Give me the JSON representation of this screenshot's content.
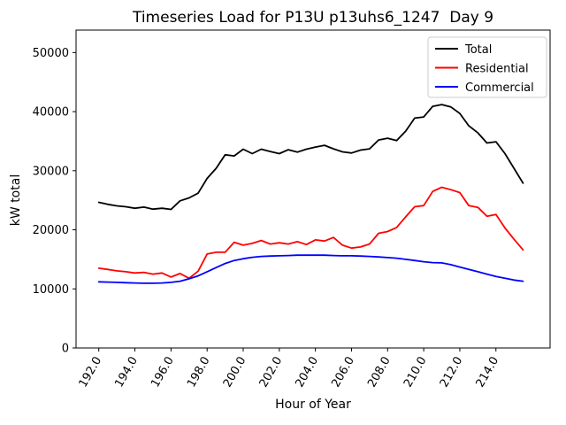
{
  "chart_data": {
    "type": "line",
    "title": "Timeseries Load for P13U p13uhs6_1247  Day 9",
    "xlabel": "Hour of Year",
    "ylabel": "kW total",
    "grid": false,
    "legend_position": "upper right",
    "xlim": [
      190.74,
      217.0
    ],
    "ylim": [
      0,
      53800
    ],
    "xticks": [
      192,
      194,
      196,
      198,
      200,
      202,
      204,
      206,
      208,
      210,
      212,
      214
    ],
    "xtick_labels": [
      "192.0",
      "194.0",
      "196.0",
      "198.0",
      "200.0",
      "202.0",
      "204.0",
      "206.0",
      "208.0",
      "210.0",
      "212.0",
      "214.0"
    ],
    "xtick_rotation": 60,
    "yticks": [
      0,
      10000,
      20000,
      30000,
      40000,
      50000
    ],
    "ytick_labels": [
      "0",
      "10000",
      "20000",
      "30000",
      "40000",
      "50000"
    ],
    "x": [
      192,
      192.5,
      193,
      193.5,
      194,
      194.5,
      195,
      195.5,
      196,
      196.5,
      197,
      197.5,
      198,
      198.5,
      199,
      199.5,
      200,
      200.5,
      201,
      201.5,
      202,
      202.5,
      203,
      203.5,
      204,
      204.5,
      205,
      205.5,
      206,
      206.5,
      207,
      207.5,
      208,
      208.5,
      209,
      209.5,
      210,
      210.5,
      211,
      211.5,
      212,
      212.5,
      213,
      213.5,
      214,
      214.5,
      215,
      215.5
    ],
    "series": [
      {
        "name": "Total",
        "color": "#000000",
        "values": [
          24650,
          24300,
          24050,
          23900,
          23650,
          23850,
          23500,
          23650,
          23450,
          24900,
          25400,
          26200,
          28700,
          30400,
          32700,
          32500,
          33650,
          32900,
          33650,
          33250,
          32900,
          33550,
          33150,
          33650,
          34000,
          34300,
          33700,
          33200,
          33000,
          33500,
          33700,
          35200,
          35500,
          35100,
          36700,
          38900,
          39100,
          40900,
          41200,
          40800,
          39700,
          37600,
          36400,
          34700,
          34900,
          32900,
          30400,
          27900
        ]
      },
      {
        "name": "Residential",
        "color": "#ff0000",
        "values": [
          13500,
          13300,
          13050,
          12900,
          12700,
          12800,
          12500,
          12700,
          12000,
          12600,
          11800,
          13000,
          15900,
          16200,
          16200,
          17900,
          17400,
          17700,
          18200,
          17600,
          17800,
          17600,
          18000,
          17500,
          18300,
          18100,
          18700,
          17400,
          16900,
          17100,
          17600,
          19400,
          19700,
          20400,
          22200,
          23900,
          24100,
          26500,
          27200,
          26800,
          26300,
          24100,
          23800,
          22300,
          22600,
          20300,
          18400,
          16600
        ]
      },
      {
        "name": "Commercial",
        "color": "#0000ff",
        "values": [
          11200,
          11150,
          11100,
          11050,
          11000,
          10950,
          10950,
          11000,
          11100,
          11300,
          11700,
          12200,
          12900,
          13600,
          14300,
          14800,
          15100,
          15350,
          15500,
          15550,
          15600,
          15650,
          15700,
          15700,
          15700,
          15700,
          15650,
          15600,
          15600,
          15550,
          15500,
          15400,
          15300,
          15200,
          15000,
          14800,
          14600,
          14450,
          14400,
          14100,
          13700,
          13300,
          12900,
          12500,
          12100,
          11800,
          11500,
          11300
        ]
      }
    ]
  }
}
